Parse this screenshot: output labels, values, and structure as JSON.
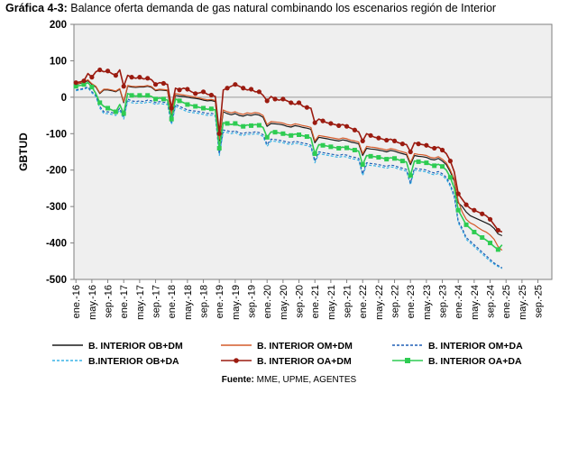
{
  "title": {
    "prefix": "Gráfica 4-3:",
    "text": " Balance oferta demanda de gas natural combinando los escenarios región de Interior"
  },
  "source": {
    "prefix": "Fuente:",
    "text": " MME, UPME, AGENTES"
  },
  "chart_data": {
    "type": "line",
    "ylabel": "GBTUD",
    "xlabel": "",
    "ylim": [
      -500,
      200
    ],
    "yticks": [
      200,
      100,
      0,
      -100,
      -200,
      -300,
      -400,
      -500
    ],
    "xlim": [
      "2016-01",
      "2025-12"
    ],
    "grid": false,
    "legend_position": "bottom",
    "x_tick_labels": [
      "ene.-16",
      "may.-16",
      "sep.-16",
      "ene.-17",
      "may.-17",
      "sep.-17",
      "ene.-18",
      "may.-18",
      "sep.-18",
      "ene.-19",
      "may.-19",
      "sep.-19",
      "ene.-20",
      "may.-20",
      "sep.-20",
      "ene.-21",
      "may.-21",
      "sep.-21",
      "ene.-22",
      "may.-22",
      "sep.-22",
      "ene.-23",
      "may.-23",
      "sep.-23",
      "ene.-24",
      "may.-24",
      "sep.-24",
      "ene.-25",
      "may.-25",
      "sep.-25"
    ],
    "series": [
      {
        "name": "B. INTERIOR OB+DM",
        "color": "#1a1a1a",
        "style": "solid",
        "values": [
          35,
          38,
          40,
          46,
          35,
          28,
          10,
          20,
          20,
          18,
          15,
          22,
          -15,
          30,
          28,
          27,
          28,
          28,
          30,
          27,
          18,
          20,
          19,
          18,
          -50,
          5,
          3,
          2,
          0,
          -2,
          -3,
          -5,
          -8,
          -10,
          -9,
          -12,
          -120,
          -40,
          -45,
          -48,
          -45,
          -50,
          -52,
          -48,
          -50,
          -47,
          -49,
          -55,
          -80,
          -72,
          -73,
          -74,
          -76,
          -80,
          -82,
          -78,
          -80,
          -83,
          -85,
          -88,
          -125,
          -110,
          -112,
          -114,
          -116,
          -118,
          -120,
          -117,
          -119,
          -123,
          -125,
          -128,
          -160,
          -140,
          -142,
          -143,
          -145,
          -147,
          -150,
          -146,
          -148,
          -152,
          -155,
          -158,
          -185,
          -160,
          -162,
          -163,
          -165,
          -170,
          -172,
          -168,
          -175,
          -185,
          -205,
          -230,
          -290,
          -300,
          -315,
          -325,
          -330,
          -335,
          -340,
          -345,
          -350,
          -360,
          -375,
          -380
        ]
      },
      {
        "name": "B. INTERIOR OM+DM",
        "color": "#d45a2a",
        "style": "solid",
        "values": [
          36,
          39,
          42,
          48,
          37,
          30,
          12,
          22,
          22,
          20,
          17,
          24,
          -12,
          32,
          30,
          29,
          30,
          30,
          32,
          29,
          20,
          22,
          21,
          20,
          -45,
          10,
          8,
          6,
          4,
          2,
          0,
          -2,
          -5,
          -7,
          -6,
          -9,
          -115,
          -35,
          -40,
          -43,
          -40,
          -45,
          -47,
          -43,
          -45,
          -42,
          -44,
          -50,
          -75,
          -67,
          -68,
          -69,
          -71,
          -75,
          -77,
          -73,
          -75,
          -78,
          -80,
          -83,
          -120,
          -105,
          -107,
          -109,
          -111,
          -113,
          -115,
          -112,
          -114,
          -118,
          -120,
          -123,
          -155,
          -135,
          -137,
          -138,
          -140,
          -142,
          -145,
          -141,
          -143,
          -147,
          -150,
          -153,
          -180,
          -155,
          -157,
          -158,
          -160,
          -165,
          -167,
          -163,
          -170,
          -180,
          -200,
          -225,
          -285,
          -315,
          -335,
          -345,
          -350,
          -358,
          -365,
          -370,
          -378,
          -390,
          -410,
          -420
        ]
      },
      {
        "name": "B. INTERIOR OM+DA",
        "color": "#1f5fb5",
        "style": "dashed",
        "values": [
          20,
          22,
          24,
          28,
          15,
          5,
          -25,
          -40,
          -40,
          -42,
          -45,
          -30,
          -55,
          -5,
          -10,
          -12,
          -10,
          -12,
          -8,
          -10,
          -15,
          -12,
          -14,
          -15,
          -70,
          -20,
          -25,
          -30,
          -35,
          -37,
          -38,
          -40,
          -42,
          -45,
          -44,
          -47,
          -155,
          -90,
          -92,
          -95,
          -92,
          -98,
          -100,
          -96,
          -98,
          -95,
          -97,
          -103,
          -130,
          -115,
          -116,
          -118,
          -120,
          -123,
          -125,
          -121,
          -123,
          -126,
          -128,
          -132,
          -175,
          -150,
          -152,
          -154,
          -156,
          -158,
          -160,
          -157,
          -159,
          -163,
          -165,
          -168,
          -210,
          -180,
          -182,
          -183,
          -185,
          -187,
          -190,
          -186,
          -188,
          -192,
          -195,
          -198,
          -235,
          -195,
          -197,
          -198,
          -200,
          -205,
          -208,
          -204,
          -210,
          -220,
          -240,
          -270,
          -340,
          -360,
          -385,
          -395,
          -405,
          -415,
          -425,
          -435,
          -445,
          -455,
          -462,
          -468
        ]
      },
      {
        "name": "B.INTERIOR OB+DA",
        "color": "#3ab4e6",
        "style": "dashed",
        "values": [
          18,
          20,
          22,
          26,
          12,
          2,
          -30,
          -45,
          -45,
          -47,
          -50,
          -35,
          -60,
          -10,
          -15,
          -17,
          -15,
          -17,
          -13,
          -15,
          -20,
          -17,
          -19,
          -20,
          -75,
          -25,
          -30,
          -35,
          -40,
          -42,
          -43,
          -45,
          -47,
          -50,
          -49,
          -52,
          -160,
          -95,
          -97,
          -100,
          -97,
          -103,
          -105,
          -101,
          -103,
          -100,
          -102,
          -108,
          -135,
          -120,
          -121,
          -123,
          -125,
          -128,
          -130,
          -126,
          -128,
          -131,
          -133,
          -137,
          -180,
          -155,
          -157,
          -159,
          -161,
          -163,
          -165,
          -162,
          -164,
          -168,
          -170,
          -173,
          -215,
          -185,
          -187,
          -188,
          -190,
          -192,
          -195,
          -191,
          -193,
          -197,
          -200,
          -203,
          -240,
          -200,
          -202,
          -203,
          -205,
          -210,
          -213,
          -209,
          -215,
          -225,
          -245,
          -275,
          -345,
          -365,
          -390,
          -400,
          -410,
          -420,
          -430,
          -440,
          -450,
          -458,
          -465,
          -470
        ]
      },
      {
        "name": "B. INTERIOR OA+DM",
        "color": "#9b1b10",
        "style": "solid-marker-circle",
        "values": [
          40,
          42,
          45,
          65,
          55,
          70,
          75,
          70,
          72,
          65,
          60,
          75,
          30,
          60,
          55,
          52,
          55,
          50,
          52,
          48,
          35,
          40,
          38,
          35,
          -30,
          25,
          20,
          25,
          22,
          15,
          10,
          12,
          15,
          8,
          6,
          2,
          -100,
          20,
          25,
          30,
          35,
          30,
          25,
          20,
          22,
          15,
          15,
          5,
          -10,
          2,
          -5,
          -8,
          -5,
          -10,
          -15,
          -20,
          -15,
          -25,
          -28,
          -30,
          -70,
          -60,
          -65,
          -70,
          -72,
          -75,
          -78,
          -75,
          -80,
          -85,
          -90,
          -95,
          -120,
          -100,
          -105,
          -110,
          -112,
          -115,
          -118,
          -115,
          -120,
          -125,
          -128,
          -130,
          -150,
          -125,
          -128,
          -130,
          -132,
          -138,
          -140,
          -137,
          -145,
          -155,
          -175,
          -205,
          -265,
          -280,
          -295,
          -305,
          -310,
          -315,
          -320,
          -325,
          -335,
          -350,
          -365,
          -370
        ]
      },
      {
        "name": "B. INTERIOR OA+DA",
        "color": "#2ecc52",
        "style": "solid-marker-square",
        "values": [
          30,
          32,
          35,
          40,
          28,
          10,
          -15,
          -25,
          -30,
          -35,
          -40,
          -20,
          -45,
          10,
          5,
          3,
          5,
          2,
          5,
          2,
          -5,
          -2,
          -5,
          -8,
          -60,
          -5,
          -10,
          -15,
          -20,
          -22,
          -25,
          -28,
          -30,
          -33,
          -32,
          -35,
          -140,
          -70,
          -72,
          -75,
          -72,
          -78,
          -80,
          -76,
          -78,
          -75,
          -77,
          -83,
          -110,
          -95,
          -96,
          -98,
          -100,
          -103,
          -105,
          -101,
          -103,
          -106,
          -108,
          -112,
          -155,
          -130,
          -132,
          -134,
          -136,
          -138,
          -140,
          -137,
          -139,
          -143,
          -145,
          -148,
          -185,
          -160,
          -162,
          -163,
          -165,
          -167,
          -170,
          -166,
          -168,
          -172,
          -175,
          -178,
          -215,
          -175,
          -177,
          -178,
          -180,
          -185,
          -188,
          -184,
          -190,
          -200,
          -220,
          -250,
          -310,
          -330,
          -350,
          -360,
          -370,
          -378,
          -385,
          -392,
          -400,
          -410,
          -418,
          -405
        ]
      }
    ]
  }
}
